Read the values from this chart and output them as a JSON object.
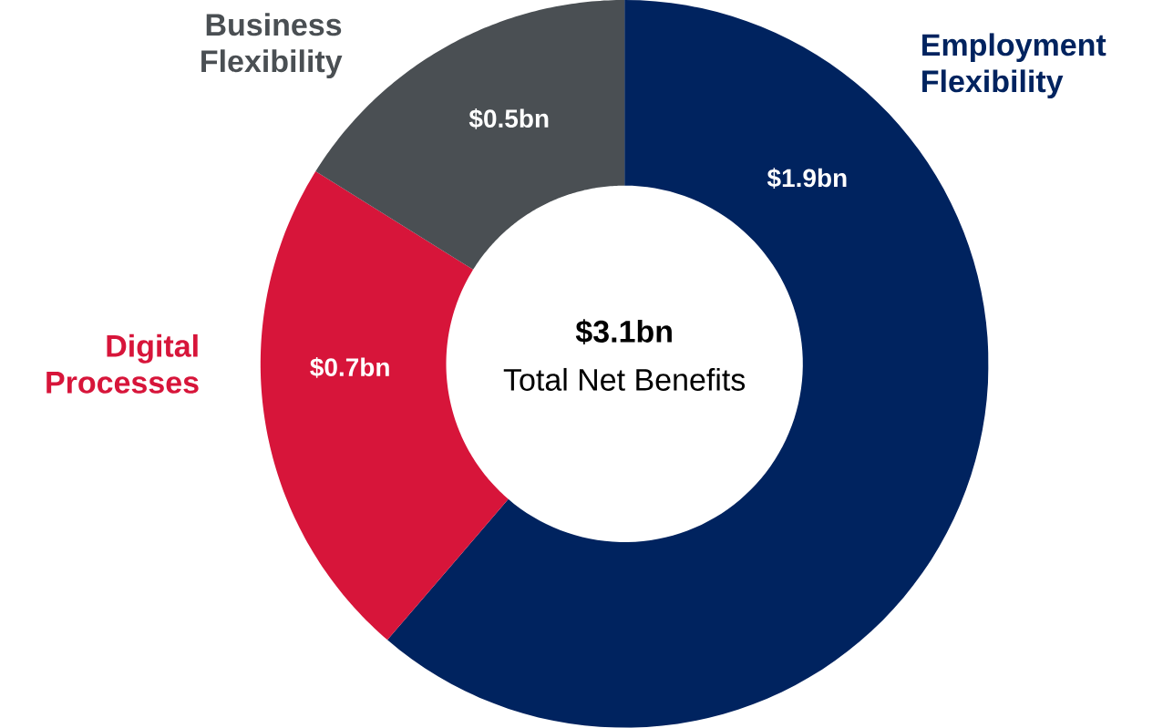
{
  "chart_data": {
    "type": "donut",
    "categories": [
      "Employment Flexibility",
      "Digital Processes",
      "Business Flexibility"
    ],
    "values": [
      1.9,
      0.7,
      0.5
    ],
    "colors": [
      "#00235f",
      "#d7153a",
      "#4a4f53"
    ],
    "value_labels": [
      "$1.9bn",
      "$0.7bn",
      "$0.5bn"
    ],
    "annotations": [
      "$3.1bn",
      "Total Net Benefits"
    ]
  }
}
